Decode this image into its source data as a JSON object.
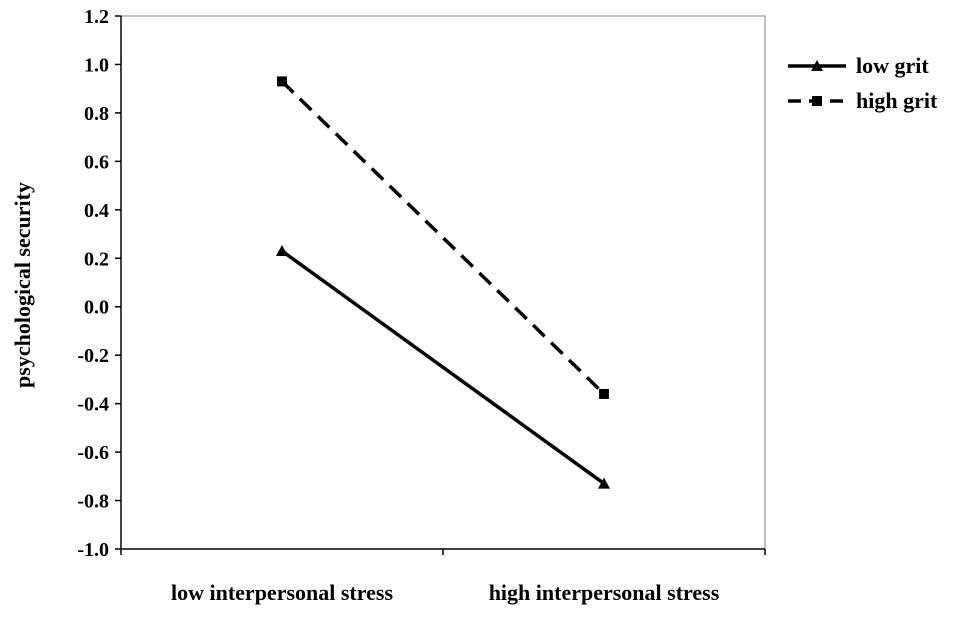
{
  "chart_data": {
    "type": "line",
    "title": "",
    "xlabel": "",
    "ylabel": "psychological security",
    "categories": [
      "low interpersonal stress",
      "high interpersonal stress"
    ],
    "ylim": [
      -1.0,
      1.2
    ],
    "yticks": [
      "-1.0",
      "-0.8",
      "-0.6",
      "-0.4",
      "-0.2",
      "0.0",
      "0.2",
      "0.4",
      "0.6",
      "0.8",
      "1.0",
      "1.2"
    ],
    "grid": false,
    "legend_position": "right",
    "series": [
      {
        "name": "low grit",
        "values": [
          0.23,
          -0.73
        ],
        "line_style": "solid",
        "marker": "triangle",
        "color": "#000000"
      },
      {
        "name": "high grit",
        "values": [
          0.93,
          -0.36
        ],
        "line_style": "dashed",
        "marker": "square",
        "color": "#000000"
      }
    ]
  }
}
